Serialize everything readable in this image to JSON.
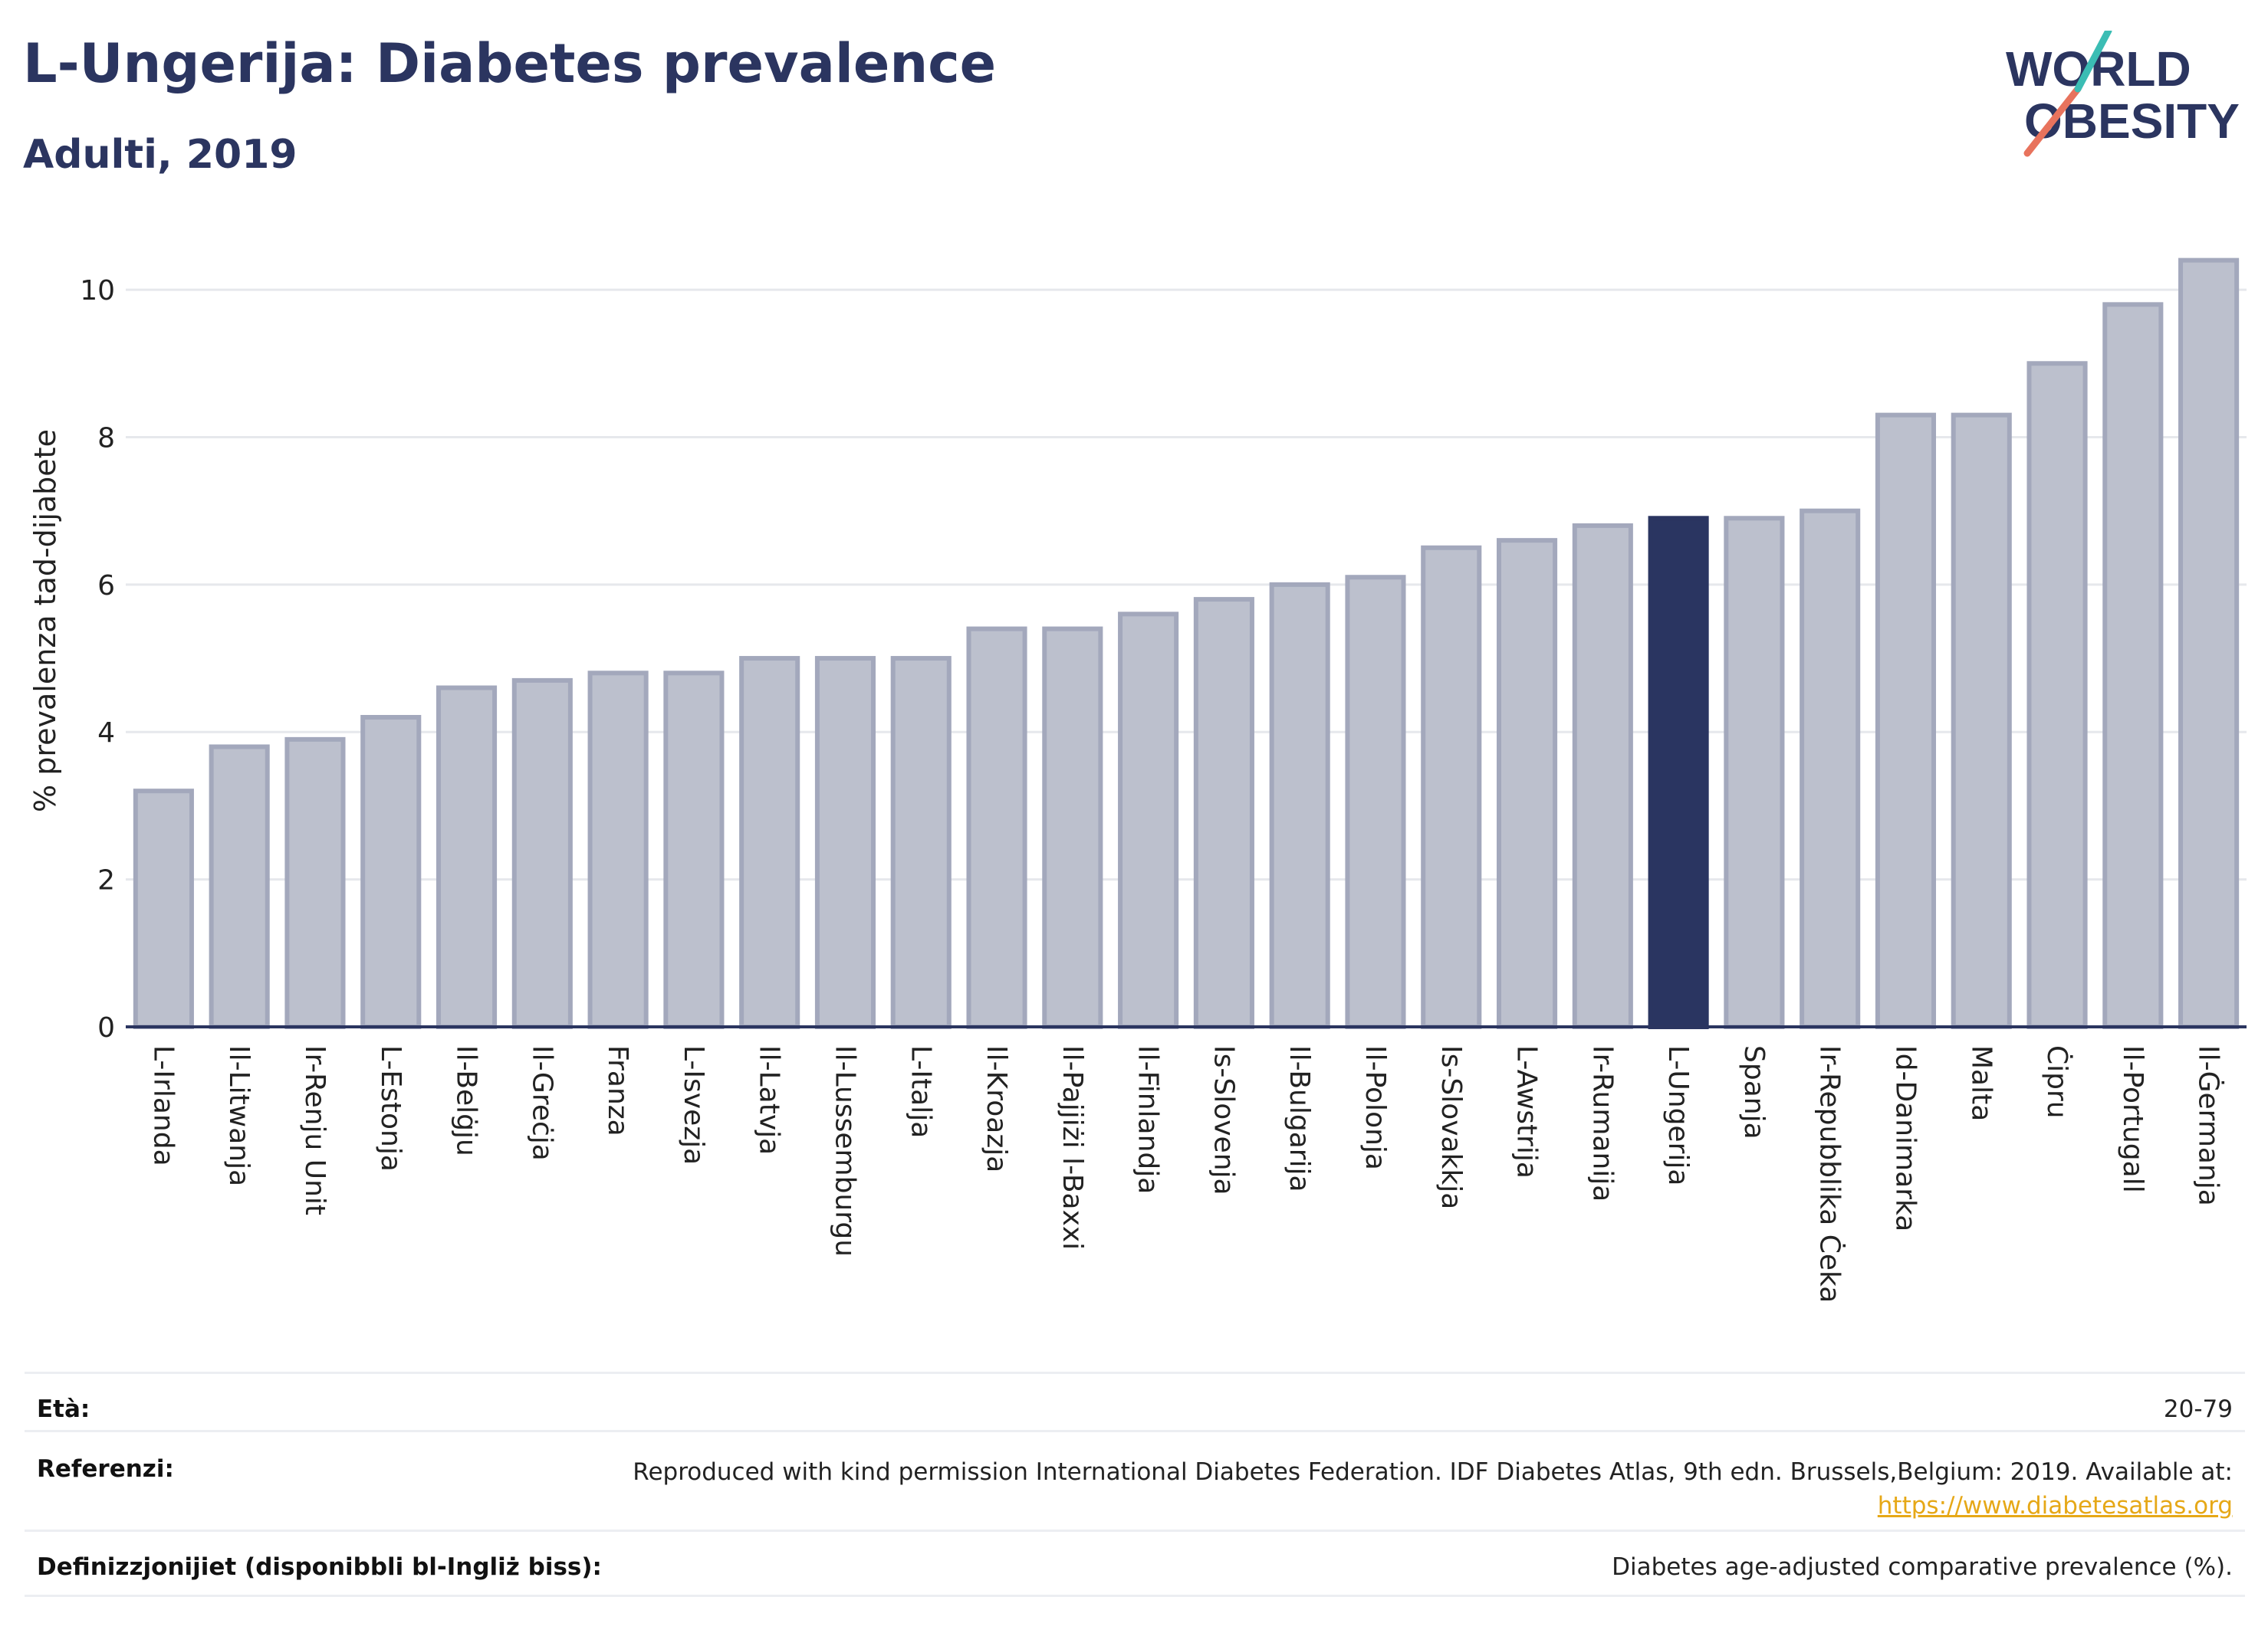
{
  "header": {
    "title": "L-Ungerija: Diabetes prevalence",
    "subtitle": "Adulti, 2019",
    "logo_line1": "WORLD",
    "logo_line2": "OBESITY"
  },
  "chart_data": {
    "type": "bar",
    "ylabel": "% prevalenza tad-dijabete",
    "xlabel": "",
    "ylim": [
      0,
      10.5
    ],
    "yticks": [
      0,
      2,
      4,
      6,
      8,
      10
    ],
    "grid": true,
    "highlight_index": 20,
    "colors": {
      "bar": "#bcc0cd",
      "bar_border": "#a3a8bc",
      "highlight": "#2a3561",
      "grid": "#e6e8ec",
      "axis": "#2b3560"
    },
    "categories": [
      "L-Irlanda",
      "Il-Litwanja",
      "Ir-Renju Unit",
      "L-Estonja",
      "Il-Belġju",
      "Il-Greċja",
      "Franza",
      "L-Isvezja",
      "Il-Latvja",
      "Il-Lussemburgu",
      "L-Italja",
      "Il-Kroazja",
      "Il-Pajjiżi l-Baxxi",
      "Il-Finlandja",
      "Is-Slovenja",
      "Il-Bulgarija",
      "Il-Polonja",
      "Is-Slovakkja",
      "L-Awstrija",
      "Ir-Rumanija",
      "L-Ungerija",
      "Spanja",
      "Ir-Repubblika Ċeka",
      "Id-Danimarka",
      "Malta",
      "Ċipru",
      "Il-Portugall",
      "Il-Ġermanja"
    ],
    "values": [
      3.2,
      3.8,
      3.9,
      4.2,
      4.6,
      4.7,
      4.8,
      4.8,
      5.0,
      5.0,
      5.0,
      5.4,
      5.4,
      5.6,
      5.8,
      6.0,
      6.1,
      6.5,
      6.6,
      6.8,
      6.9,
      6.9,
      7.0,
      8.3,
      8.3,
      9.0,
      9.8,
      10.4
    ]
  },
  "info": {
    "age_label": "Età:",
    "age_value": "20-79",
    "ref_label": "Referenzi:",
    "ref_text": "Reproduced with kind permission International Diabetes Federation. IDF Diabetes Atlas, 9th edn. Brussels,Belgium: 2019. Available at:",
    "ref_link": "https://www.diabetesatlas.org",
    "def_label": "Definizzjonijiet (disponibbli bl-Ingliż biss):",
    "def_value": "Diabetes age-adjusted comparative prevalence (%)."
  }
}
